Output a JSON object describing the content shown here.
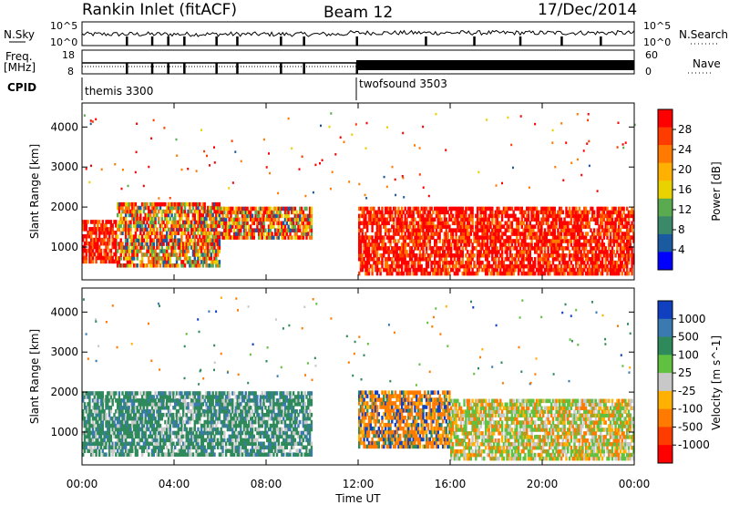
{
  "header": {
    "station": "Rankin Inlet (fitACF)",
    "beam": "Beam 12",
    "date": "17/Dec/2014"
  },
  "top_panels": {
    "nsky_label": "N.Sky",
    "nsearch_label": "N.Search",
    "nsky_ticks": [
      "10^5",
      "10^0"
    ],
    "nsearch_ticks": [
      "10^5",
      "10^0"
    ],
    "freq_label": "Freq.",
    "freq_unit": "[MHz]",
    "freq_ticks": [
      "18",
      "8"
    ],
    "nave_label": "Nave",
    "nave_ticks": [
      "60",
      "0"
    ],
    "cpid_label": "CPID",
    "cpid_segments": [
      {
        "name": "themis 3300",
        "start_hour": 0,
        "end_hour": 12
      },
      {
        "name": "twofsound 3503",
        "start_hour": 12,
        "end_hour": 24
      }
    ]
  },
  "chart_data": [
    {
      "type": "heatmap",
      "panel": "power",
      "ylabel": "Slant Range [km]",
      "ylim": [
        180,
        4600
      ],
      "yticks": [
        1000,
        2000,
        3000,
        4000
      ],
      "xlim": [
        0,
        24
      ],
      "colorbar": {
        "label": "Power [dB]",
        "ticks": [
          "28",
          "24",
          "20",
          "16",
          "12",
          "8",
          "4"
        ],
        "colors": [
          "#ff0000",
          "#ff3c00",
          "#ff7a00",
          "#ffb000",
          "#e8d200",
          "#5aaa50",
          "#3a8a6a",
          "#1a5aa0",
          "#0000ff"
        ]
      },
      "regions": [
        {
          "from_hour": 0.0,
          "to_hour": 1.5,
          "range_min": 600,
          "range_max": 1600,
          "value_db": 27
        },
        {
          "from_hour": 1.5,
          "to_hour": 6.0,
          "range_min": 500,
          "range_max": 2100,
          "value_db": 20
        },
        {
          "from_hour": 6.0,
          "to_hour": 10.0,
          "range_min": 1200,
          "range_max": 2000,
          "value_db": 22
        },
        {
          "from_hour": 12.0,
          "to_hour": 24.0,
          "range_min": 300,
          "range_max": 2000,
          "value_db": 26
        }
      ]
    },
    {
      "type": "heatmap",
      "panel": "velocity",
      "ylabel": "Slant Range [km]",
      "ylim": [
        180,
        4600
      ],
      "yticks": [
        1000,
        2000,
        3000,
        4000
      ],
      "xlim": [
        0,
        24
      ],
      "xlabel": "Time UT",
      "xticks": [
        "00:00",
        "04:00",
        "08:00",
        "12:00",
        "16:00",
        "20:00",
        "00:00"
      ],
      "colorbar": {
        "label": "Velocity [m s^-1]",
        "ticks": [
          "1000",
          "500",
          "100",
          "25",
          "-25",
          "-100",
          "-500",
          "-1000"
        ],
        "colors": [
          "#1040c0",
          "#3a7ab0",
          "#2e8a5a",
          "#60c040",
          "#c8c8c8",
          "#ffb000",
          "#ff7a00",
          "#ff3c00",
          "#ff0000"
        ]
      },
      "regions": [
        {
          "from_hour": 0.0,
          "to_hour": 10.0,
          "range_min": 400,
          "range_max": 2000,
          "value_ms": 150
        },
        {
          "from_hour": 12.0,
          "to_hour": 16.0,
          "range_min": 600,
          "range_max": 2000,
          "value_ms": -300
        },
        {
          "from_hour": 16.0,
          "to_hour": 24.0,
          "range_min": 300,
          "range_max": 1800,
          "value_ms": 50
        }
      ]
    }
  ]
}
